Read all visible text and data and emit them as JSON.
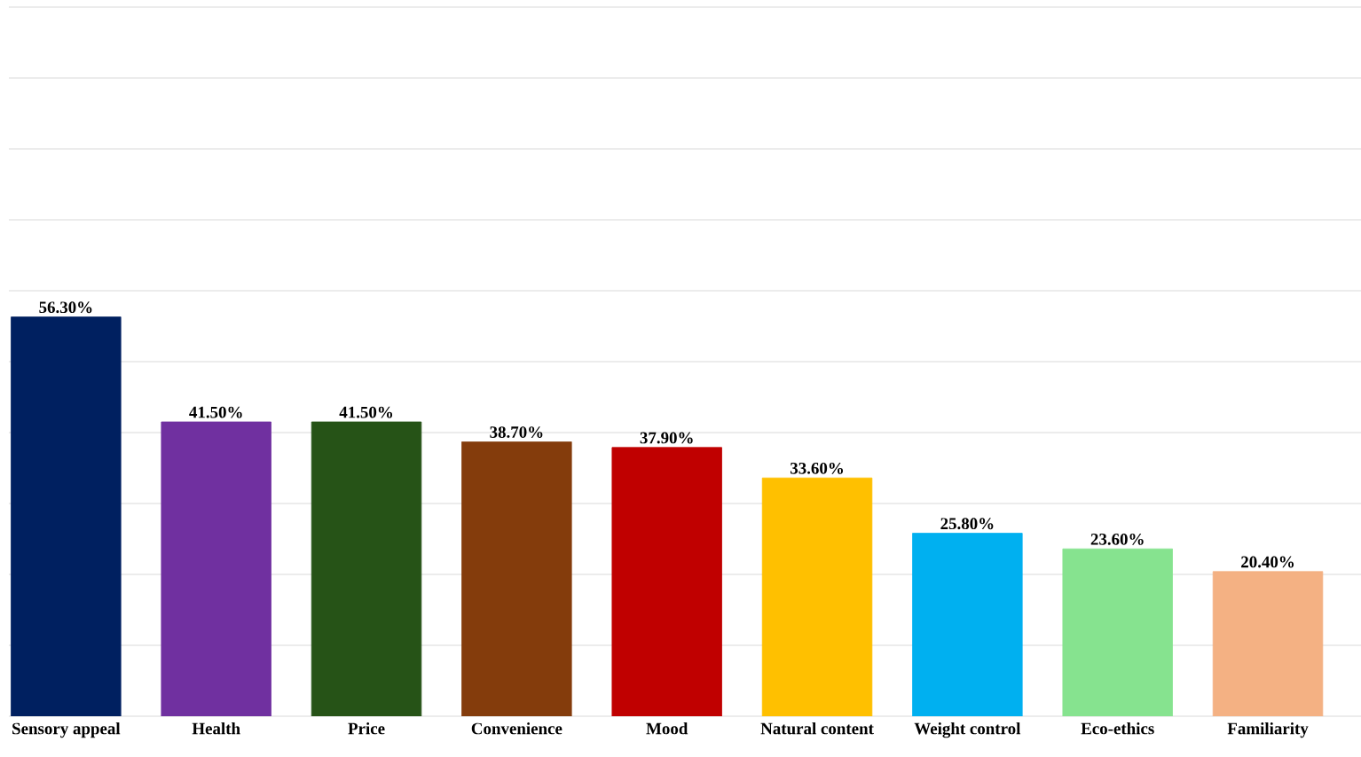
{
  "chart_data": {
    "type": "bar",
    "categories": [
      "Sensory appeal",
      "Health",
      "Price",
      "Convenience",
      "Mood",
      "Natural content",
      "Weight control",
      "Eco-ethics",
      "Familiarity"
    ],
    "values": [
      56.3,
      41.5,
      41.5,
      38.7,
      37.9,
      33.6,
      25.8,
      23.6,
      20.4
    ],
    "value_labels": [
      "56.30%",
      "41.50%",
      "41.50%",
      "38.70%",
      "37.90%",
      "33.60%",
      "25.80%",
      "23.60%",
      "20.40%"
    ],
    "colors": [
      "#002060",
      "#7030a0",
      "#265317",
      "#843c0c",
      "#c00000",
      "#ffc000",
      "#00b0f0",
      "#86e38f",
      "#f4b183"
    ],
    "ylim": [
      0,
      100
    ],
    "yticks": [
      {
        "value": 0,
        "label": null
      },
      {
        "value": 10,
        "label": null
      },
      {
        "value": 20,
        "label": null
      },
      {
        "value": 30,
        "label": null
      },
      {
        "value": 40,
        "label": null
      },
      {
        "value": 50,
        "label": null
      },
      {
        "value": 60,
        "label": null
      },
      {
        "value": 70,
        "label": null
      },
      {
        "value": 80,
        "label": null
      },
      {
        "value": 90,
        "label": null
      },
      {
        "value": 100,
        "label": null
      }
    ],
    "grid": "y",
    "tick_labels": "x"
  }
}
